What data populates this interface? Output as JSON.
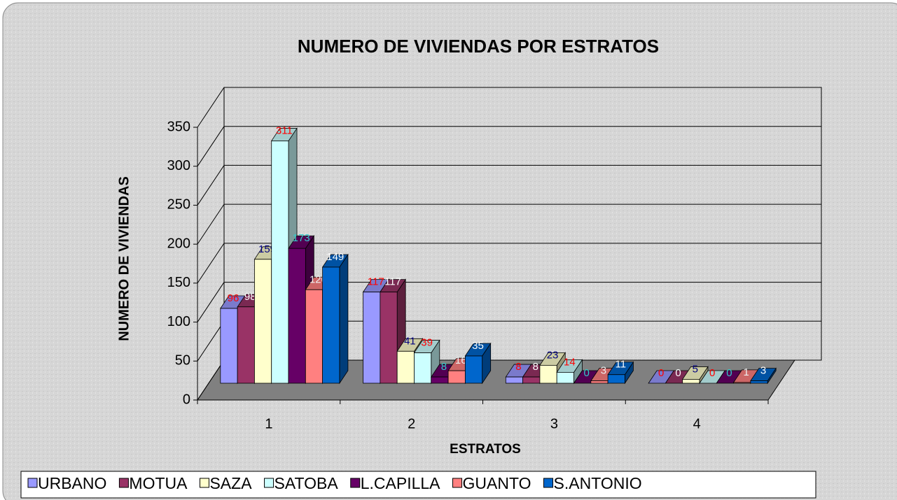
{
  "chart_data": {
    "type": "bar3d",
    "title": "NUMERO DE VIVIENDAS POR ESTRATOS",
    "x_label": "ESTRATOS",
    "y_label": "NUMERO DE VIVIENDAS",
    "categories": [
      "1",
      "2",
      "3",
      "4"
    ],
    "ylim": [
      0,
      350
    ],
    "yticks": [
      0,
      50,
      100,
      150,
      200,
      250,
      300,
      350
    ],
    "grid": true,
    "legend": "bottom",
    "series": [
      {
        "name": "URBANO",
        "color": "#9999ff",
        "label_color": "#ff0000",
        "values": [
          96,
          117,
          8,
          0
        ]
      },
      {
        "name": "MOTUA",
        "color": "#993366",
        "label_color": "#ffffff",
        "values": [
          98,
          117,
          8,
          0
        ]
      },
      {
        "name": "SAZA",
        "color": "#ffffcc",
        "label_color": "#000080",
        "values": [
          159,
          41,
          23,
          5
        ]
      },
      {
        "name": "SATOBA",
        "color": "#ccffff",
        "label_color": "#ff0000",
        "values": [
          311,
          39,
          14,
          0
        ]
      },
      {
        "name": "L.CAPILLA",
        "color": "#660066",
        "label_color": "#33cccc",
        "values": [
          173,
          8,
          0,
          0
        ]
      },
      {
        "name": "GUANTO",
        "color": "#ff8080",
        "label_color": "#eeeeee",
        "values": [
          120,
          16,
          3,
          1
        ]
      },
      {
        "name": "S.ANTONIO",
        "color": "#0066cc",
        "label_color": "#ffffff",
        "values": [
          149,
          35,
          11,
          3
        ]
      }
    ]
  }
}
